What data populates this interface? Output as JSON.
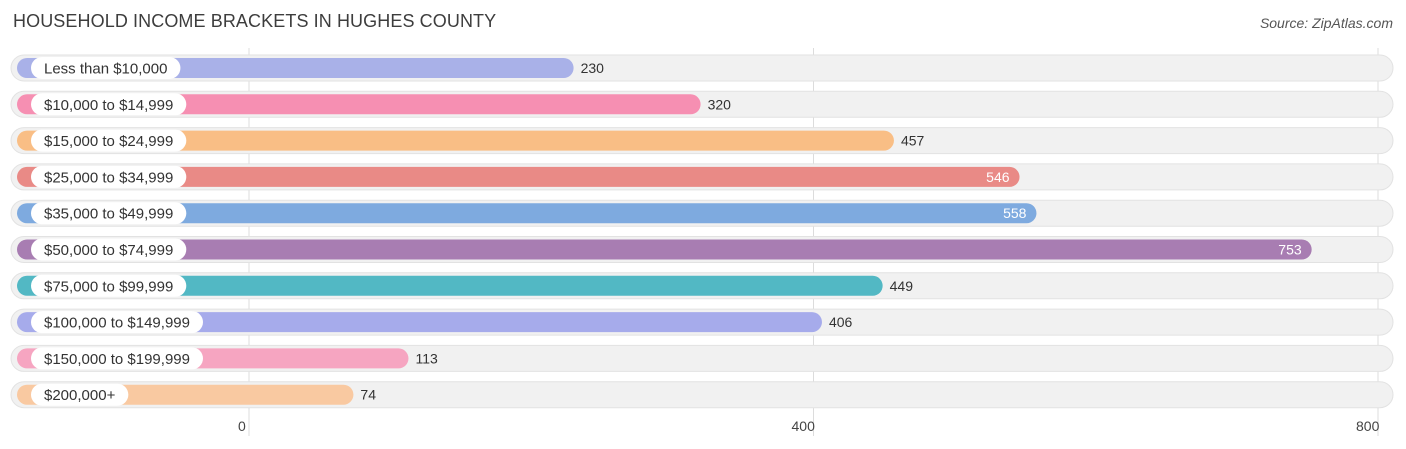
{
  "header": {
    "title": "HOUSEHOLD INCOME BRACKETS IN HUGHES COUNTY",
    "source": "Source: ZipAtlas.com"
  },
  "chart_data": {
    "type": "bar",
    "orientation": "horizontal",
    "title": "HOUSEHOLD INCOME BRACKETS IN HUGHES COUNTY",
    "xlabel": "",
    "ylabel": "",
    "xlim": [
      0,
      800
    ],
    "ticks": [
      0,
      400,
      800
    ],
    "tick_labels": [
      "0",
      "400",
      "800"
    ],
    "grid": true,
    "categories": [
      "Less than $10,000",
      "$10,000 to $14,999",
      "$15,000 to $24,999",
      "$25,000 to $34,999",
      "$35,000 to $49,999",
      "$50,000 to $74,999",
      "$75,000 to $99,999",
      "$100,000 to $149,999",
      "$150,000 to $199,999",
      "$200,000+"
    ],
    "values": [
      230,
      320,
      457,
      546,
      558,
      753,
      449,
      406,
      113,
      74
    ],
    "value_labels": [
      "230",
      "320",
      "457",
      "546",
      "558",
      "753",
      "449",
      "406",
      "113",
      "74"
    ],
    "colors": [
      "#a9b1e8",
      "#f68fb2",
      "#f9be85",
      "#e98a86",
      "#7eaadf",
      "#a87db2",
      "#52b8c4",
      "#a6abeb",
      "#f6a5c1",
      "#f9c9a1"
    ]
  }
}
